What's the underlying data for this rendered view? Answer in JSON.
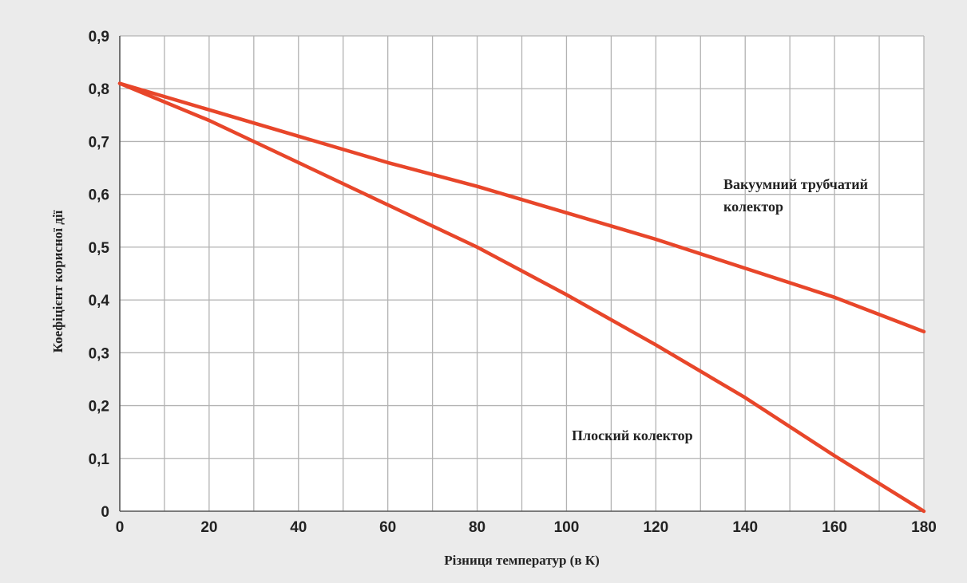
{
  "colors": {
    "background": "#ebebeb",
    "plot_background": "#ffffff",
    "grid": "#b3b3b3",
    "line": "#e8462a",
    "text": "#222222"
  },
  "chart_data": {
    "type": "line",
    "xlabel": "Різниця температур (в К)",
    "ylabel": "Коефіцієнт корисної дії",
    "xlim": [
      0,
      180
    ],
    "ylim": [
      0,
      0.9
    ],
    "x_ticks": [
      0,
      20,
      40,
      60,
      80,
      100,
      120,
      140,
      160,
      180
    ],
    "x_tick_labels": [
      "0",
      "20",
      "40",
      "60",
      "80",
      "100",
      "120",
      "140",
      "160",
      "180"
    ],
    "y_ticks": [
      0,
      0.1,
      0.2,
      0.3,
      0.4,
      0.5,
      0.6,
      0.7,
      0.8,
      0.9
    ],
    "y_tick_labels": [
      "0",
      "0,1",
      "0,2",
      "0,3",
      "0,4",
      "0,5",
      "0,6",
      "0,7",
      "0,8",
      "0,9"
    ],
    "x_grid_step": 10,
    "grid": true,
    "legend": "inline labels",
    "series": [
      {
        "name": "Вакуумний трубчатий колектор",
        "label_lines": [
          "Вакуумний трубчатий",
          "колектор"
        ],
        "x": [
          0,
          20,
          40,
          60,
          80,
          100,
          120,
          140,
          160,
          180
        ],
        "y": [
          0.81,
          0.76,
          0.71,
          0.66,
          0.615,
          0.565,
          0.515,
          0.46,
          0.405,
          0.34
        ]
      },
      {
        "name": "Плоский колектор",
        "label_lines": [
          "Плоский колектор"
        ],
        "x": [
          0,
          20,
          40,
          60,
          80,
          100,
          120,
          140,
          160,
          180
        ],
        "y": [
          0.81,
          0.74,
          0.66,
          0.58,
          0.5,
          0.41,
          0.315,
          0.215,
          0.105,
          0.0
        ]
      }
    ]
  }
}
